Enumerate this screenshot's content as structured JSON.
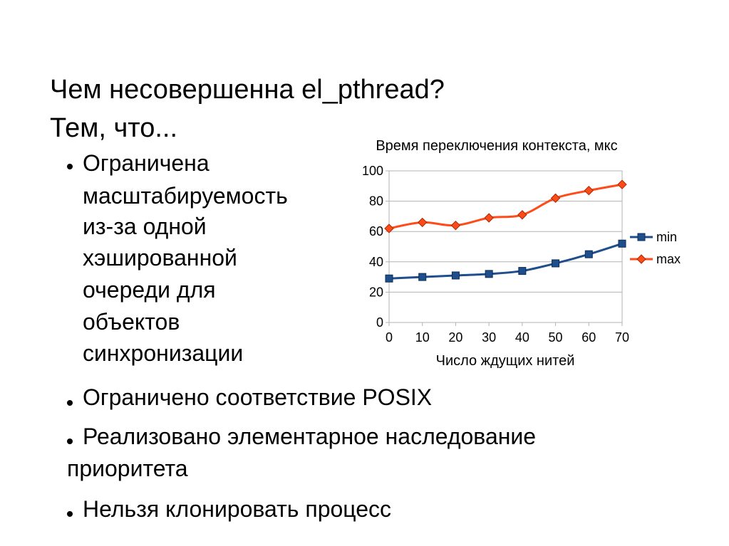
{
  "slide": {
    "title_line1": "Чем несовершенна el_pthread?",
    "title_line2": "Тем, что...",
    "bullet1_lines": [
      "Ограничена",
      "масштабируемость",
      "из-за одной",
      "хэшированной",
      "очереди для",
      "объектов",
      "синхронизации"
    ],
    "bullet2": "Ограничено соответствие POSIX",
    "bullet3_line1": "Реализовано элементарное наследование",
    "bullet3_line2": "приоритета",
    "bullet4": "Нельзя клонировать процесс"
  },
  "chart_data": {
    "type": "line",
    "title": "Время переключения контекста, мкс",
    "xlabel": "Число ждущих нитей",
    "ylabel": "",
    "x": [
      0,
      10,
      20,
      30,
      40,
      50,
      60,
      70
    ],
    "xlim": [
      0,
      70
    ],
    "ylim": [
      0,
      100
    ],
    "yticks": [
      0,
      20,
      40,
      60,
      80,
      100
    ],
    "grid": true,
    "legend_position": "right",
    "series": [
      {
        "name": "min",
        "color": "#1f4e8c",
        "marker": "square",
        "values": [
          29,
          30,
          31,
          32,
          34,
          39,
          45,
          52
        ]
      },
      {
        "name": "max",
        "color": "#ff4a1a",
        "marker": "diamond",
        "values": [
          62,
          66,
          64,
          69,
          71,
          82,
          87,
          91
        ]
      }
    ]
  }
}
